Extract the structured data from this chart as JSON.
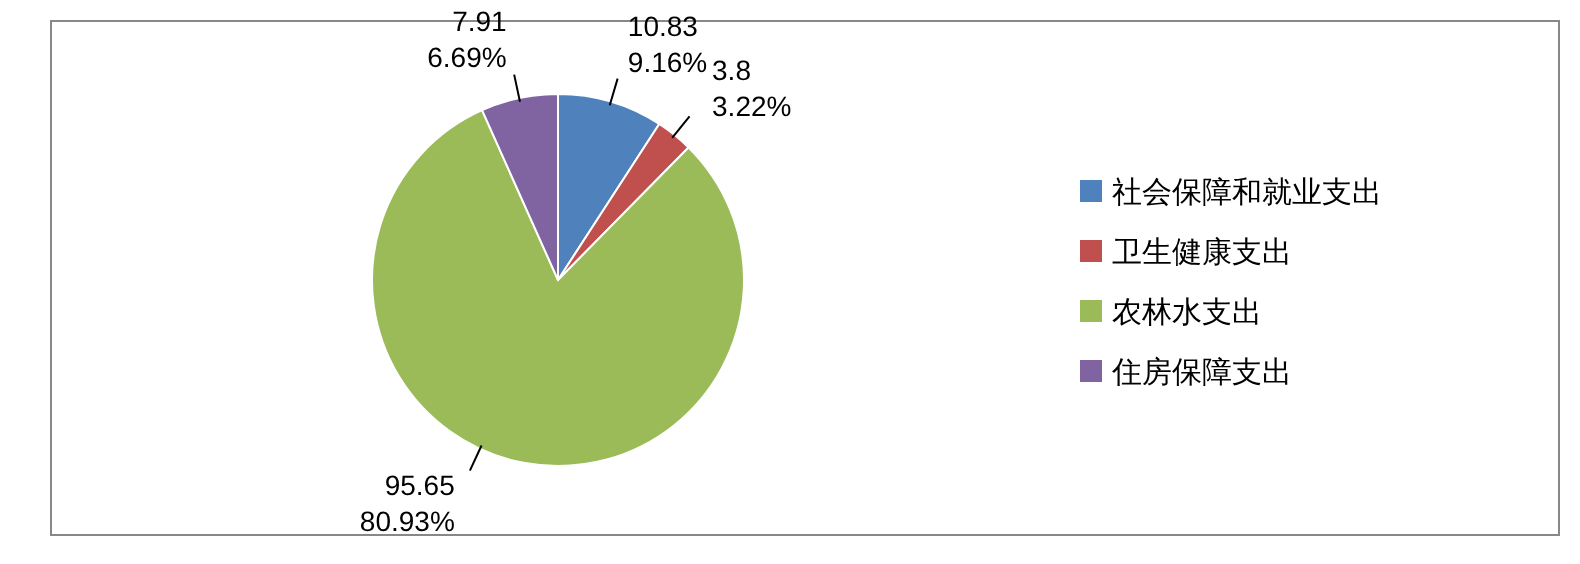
{
  "chart_data": {
    "type": "pie",
    "categories": [
      "社会保障和就业支出",
      "卫生健康支出",
      "农林水支出",
      "住房保障支出"
    ],
    "values": [
      10.83,
      3.8,
      95.65,
      7.91
    ],
    "colors": [
      "#4f81bd",
      "#c0504d",
      "#9bbb59",
      "#8064a2"
    ],
    "value_labels": [
      "10.83\n9.16%",
      "3.8\n3.22%",
      "95.65\n80.93%",
      "7.91\n6.69%"
    ],
    "legend": "right"
  }
}
